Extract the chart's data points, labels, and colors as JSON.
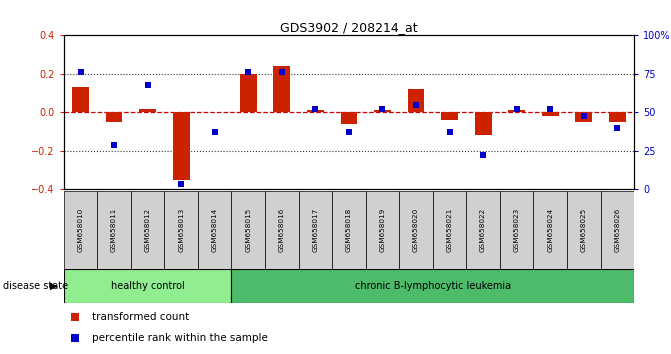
{
  "title": "GDS3902 / 208214_at",
  "samples": [
    "GSM658010",
    "GSM658011",
    "GSM658012",
    "GSM658013",
    "GSM658014",
    "GSM658015",
    "GSM658016",
    "GSM658017",
    "GSM658018",
    "GSM658019",
    "GSM658020",
    "GSM658021",
    "GSM658022",
    "GSM658023",
    "GSM658024",
    "GSM658025",
    "GSM658026"
  ],
  "red_bars": [
    0.13,
    -0.05,
    0.02,
    -0.35,
    0.0,
    0.2,
    0.24,
    0.01,
    -0.06,
    0.01,
    0.12,
    -0.04,
    -0.12,
    0.01,
    -0.02,
    -0.05,
    -0.05
  ],
  "blue_squares": [
    0.21,
    -0.17,
    0.14,
    -0.37,
    -0.1,
    0.21,
    0.21,
    0.02,
    -0.1,
    0.02,
    0.04,
    -0.1,
    -0.22,
    0.02,
    0.02,
    -0.02,
    -0.08
  ],
  "group_labels": [
    "healthy control",
    "chronic B-lymphocytic leukemia"
  ],
  "group_sizes": [
    5,
    12
  ],
  "group_colors": [
    "#90EE90",
    "#4CBB6A"
  ],
  "ylim_left": [
    -0.4,
    0.4
  ],
  "yticks_left": [
    -0.4,
    -0.2,
    0.0,
    0.2,
    0.4
  ],
  "ytick_labels_right": [
    "0",
    "25",
    "50",
    "75",
    "100%"
  ],
  "red_bar_color": "#CC2200",
  "blue_sq_color": "#0000CC",
  "zero_line_color": "#CC0000",
  "dotted_line_color": "#333333",
  "bar_width": 0.5,
  "sq_size": 20,
  "legend_red": "transformed count",
  "legend_blue": "percentile rank within the sample",
  "disease_state_label": "disease state",
  "title_color": "#000000",
  "left_tick_color": "#CC2200",
  "right_tick_color": "#0000CC",
  "sample_bg_color": "#D0D0D0"
}
